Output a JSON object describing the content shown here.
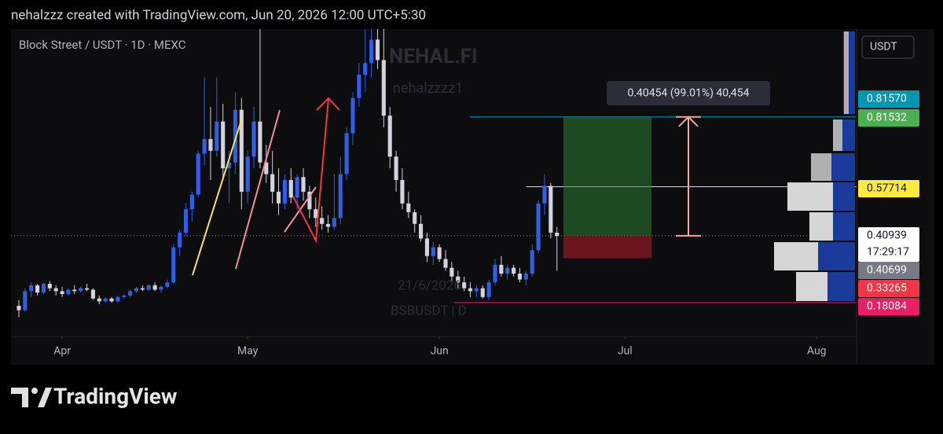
{
  "header": "nehalzzz created with TradingView.com, Jun 20, 2026 12:00 UTC+5:30",
  "brand": "TradingView",
  "chart_data": {
    "type": "candlestick",
    "title": "Block Street / USDT · 1D · MEXC",
    "watermark": [
      "NEHAL.FI",
      "nehalzzzz1",
      "21/6/2026",
      "BSBUSDT | D"
    ],
    "currency": "USDT",
    "up_color": "#2f5ee8",
    "down_color": "#d1d4dc",
    "ohlc": [
      [
        0.17,
        0.19,
        0.13,
        0.155
      ],
      [
        0.155,
        0.23,
        0.15,
        0.22
      ],
      [
        0.22,
        0.25,
        0.2,
        0.24
      ],
      [
        0.24,
        0.245,
        0.205,
        0.215
      ],
      [
        0.215,
        0.25,
        0.21,
        0.245
      ],
      [
        0.245,
        0.255,
        0.22,
        0.23
      ],
      [
        0.23,
        0.24,
        0.205,
        0.22
      ],
      [
        0.22,
        0.235,
        0.2,
        0.21
      ],
      [
        0.21,
        0.23,
        0.205,
        0.225
      ],
      [
        0.225,
        0.24,
        0.21,
        0.22
      ],
      [
        0.22,
        0.235,
        0.215,
        0.23
      ],
      [
        0.23,
        0.245,
        0.22,
        0.225
      ],
      [
        0.225,
        0.23,
        0.19,
        0.195
      ],
      [
        0.195,
        0.205,
        0.175,
        0.185
      ],
      [
        0.185,
        0.2,
        0.18,
        0.195
      ],
      [
        0.195,
        0.2,
        0.18,
        0.185
      ],
      [
        0.185,
        0.205,
        0.18,
        0.2
      ],
      [
        0.2,
        0.21,
        0.195,
        0.205
      ],
      [
        0.205,
        0.225,
        0.2,
        0.22
      ],
      [
        0.22,
        0.235,
        0.215,
        0.23
      ],
      [
        0.23,
        0.24,
        0.22,
        0.225
      ],
      [
        0.225,
        0.245,
        0.22,
        0.24
      ],
      [
        0.24,
        0.25,
        0.22,
        0.225
      ],
      [
        0.225,
        0.24,
        0.215,
        0.235
      ],
      [
        0.235,
        0.26,
        0.23,
        0.25
      ],
      [
        0.25,
        0.38,
        0.245,
        0.37
      ],
      [
        0.37,
        0.43,
        0.34,
        0.42
      ],
      [
        0.42,
        0.52,
        0.41,
        0.5
      ],
      [
        0.5,
        0.56,
        0.46,
        0.55
      ],
      [
        0.55,
        0.7,
        0.54,
        0.69
      ],
      [
        0.69,
        0.95,
        0.65,
        0.74
      ],
      [
        0.74,
        0.85,
        0.6,
        0.7
      ],
      [
        0.7,
        0.95,
        0.68,
        0.8
      ],
      [
        0.8,
        0.86,
        0.6,
        0.64
      ],
      [
        0.64,
        0.7,
        0.52,
        0.66
      ],
      [
        0.66,
        0.9,
        0.62,
        0.84
      ],
      [
        0.84,
        0.88,
        0.5,
        0.56
      ],
      [
        0.56,
        0.7,
        0.52,
        0.68
      ],
      [
        0.68,
        0.85,
        0.64,
        0.8
      ],
      [
        0.8,
        1.116,
        0.64,
        0.66
      ],
      [
        0.66,
        0.72,
        0.59,
        0.62
      ],
      [
        0.62,
        0.7,
        0.52,
        0.56
      ],
      [
        0.56,
        0.64,
        0.48,
        0.52
      ],
      [
        0.52,
        0.62,
        0.5,
        0.6
      ],
      [
        0.6,
        0.64,
        0.52,
        0.54
      ],
      [
        0.54,
        0.62,
        0.5,
        0.61
      ],
      [
        0.61,
        0.64,
        0.53,
        0.56
      ],
      [
        0.56,
        0.58,
        0.47,
        0.5
      ],
      [
        0.5,
        0.54,
        0.44,
        0.47
      ],
      [
        0.47,
        0.51,
        0.43,
        0.45
      ],
      [
        0.45,
        0.48,
        0.42,
        0.44
      ],
      [
        0.44,
        0.62,
        0.43,
        0.47
      ],
      [
        0.47,
        0.68,
        0.45,
        0.62
      ],
      [
        0.62,
        0.78,
        0.6,
        0.76
      ],
      [
        0.76,
        0.9,
        0.72,
        0.88
      ],
      [
        0.88,
        1.0,
        0.85,
        0.96
      ],
      [
        0.96,
        1.116,
        0.9,
        1.0
      ],
      [
        1.0,
        1.116,
        0.95,
        1.08
      ],
      [
        1.08,
        1.116,
        0.98,
        1.01
      ],
      [
        1.01,
        1.116,
        0.78,
        0.82
      ],
      [
        0.82,
        0.85,
        0.64,
        0.68
      ],
      [
        0.68,
        0.7,
        0.56,
        0.6
      ],
      [
        0.6,
        0.64,
        0.5,
        0.52
      ],
      [
        0.52,
        0.56,
        0.47,
        0.49
      ],
      [
        0.49,
        0.5,
        0.42,
        0.45
      ],
      [
        0.45,
        0.48,
        0.39,
        0.4
      ],
      [
        0.4,
        0.42,
        0.32,
        0.34
      ],
      [
        0.34,
        0.39,
        0.31,
        0.37
      ],
      [
        0.37,
        0.38,
        0.32,
        0.33
      ],
      [
        0.33,
        0.36,
        0.29,
        0.3
      ],
      [
        0.3,
        0.32,
        0.25,
        0.27
      ],
      [
        0.27,
        0.29,
        0.23,
        0.25
      ],
      [
        0.25,
        0.27,
        0.22,
        0.23
      ],
      [
        0.23,
        0.25,
        0.2,
        0.22
      ],
      [
        0.22,
        0.24,
        0.2,
        0.23
      ],
      [
        0.23,
        0.24,
        0.195,
        0.2
      ],
      [
        0.2,
        0.26,
        0.19,
        0.25
      ],
      [
        0.25,
        0.33,
        0.24,
        0.31
      ],
      [
        0.31,
        0.34,
        0.27,
        0.28
      ],
      [
        0.28,
        0.31,
        0.26,
        0.3
      ],
      [
        0.3,
        0.31,
        0.27,
        0.28
      ],
      [
        0.28,
        0.3,
        0.25,
        0.26
      ],
      [
        0.26,
        0.29,
        0.24,
        0.28
      ],
      [
        0.28,
        0.38,
        0.27,
        0.36
      ],
      [
        0.36,
        0.53,
        0.35,
        0.52
      ],
      [
        0.52,
        0.62,
        0.48,
        0.58
      ],
      [
        0.58,
        0.59,
        0.4,
        0.42
      ],
      [
        0.42,
        0.44,
        0.29,
        0.409
      ]
    ],
    "xlim": [
      -1.27,
      135.45
    ],
    "xticks": [
      {
        "value": 7,
        "label": "Apr"
      },
      {
        "value": 37,
        "label": "May"
      },
      {
        "value": 68,
        "label": "Jun"
      },
      {
        "value": 98,
        "label": "Jul"
      },
      {
        "value": 129,
        "label": "Aug"
      }
    ],
    "ylim": [
      0.065,
      1.116
    ],
    "levels": [
      {
        "value": 0.8157,
        "label": "0.81570",
        "color": "#0097b2"
      },
      {
        "value": 0.81532,
        "label": "0.81532",
        "color": "#4caf50"
      },
      {
        "value": 0.57714,
        "label": "0.57714",
        "color": "#ffeb3b"
      },
      {
        "value": 0.40939,
        "label": "0.40939",
        "color": "#ffffff"
      },
      {
        "value": 0.40699,
        "label": "0.40699",
        "color": "#787b86"
      },
      {
        "value": 0.33265,
        "label": "0.33265",
        "color": "#f23645"
      },
      {
        "value": 0.18084,
        "label": "0.18084",
        "color": "#e91e63"
      }
    ],
    "countdown": "17:29:17",
    "measure": "0.40454 (99.01%) 40,454"
  }
}
